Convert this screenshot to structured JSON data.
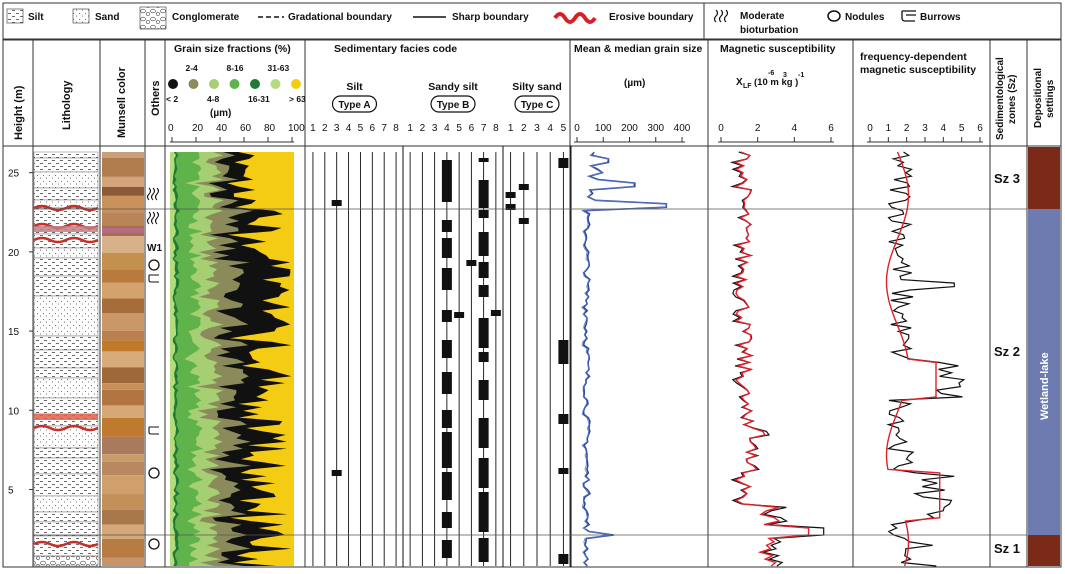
{
  "legend": {
    "silt": "Silt",
    "sand": "Sand",
    "conglomerate": "Conglomerate",
    "gradational": "Gradational boundary",
    "sharp": "Sharp boundary",
    "erosive": "Erosive boundary",
    "bioturbation_1": "Moderate",
    "bioturbation_2": "bioturbation",
    "nodules": "Nodules",
    "burrows": "Burrows"
  },
  "columns": {
    "height": "Height (m)",
    "lithology": "Lithology",
    "munsell": "Munsell color",
    "others": "Others",
    "grain_title": "Grain size fractions (%)",
    "facies_title": "Sedimentary facies code",
    "mean_title": "Mean & median grain size",
    "mean_unit": "(µm)",
    "ms_title": "Magnetic susceptibility",
    "ms_unit": "X",
    "ms_sub": "LF",
    "ms_unit_rest": "(10 m kg )",
    "ms_exp1": "-6",
    "ms_exp2": "3",
    "ms_exp3": "-1",
    "fd_title_1": "frequency-dependent",
    "fd_title_2": "magnetic susceptibility",
    "zones_1": "Sedimentological",
    "zones_2": "zones (Sz)",
    "dep_1": "Depositional",
    "dep_2": "settings"
  },
  "grain_legend": {
    "items": [
      {
        "label": "< 2",
        "top": "",
        "color": "#111111"
      },
      {
        "label": "",
        "top": "2-4",
        "color": "#8a8a5a"
      },
      {
        "label": "4-8",
        "top": "",
        "color": "#a6cf73"
      },
      {
        "label": "",
        "top": "8-16",
        "color": "#5fb34a"
      },
      {
        "label": "16-31",
        "top": "",
        "color": "#1f7a35"
      },
      {
        "label": "",
        "top": "31-63",
        "color": "#b5dc7c"
      },
      {
        "label": "> 63",
        "top": "",
        "color": "#f5cc14"
      }
    ],
    "unit": "(µm)",
    "ticks": [
      "0",
      "20",
      "40",
      "60",
      "80",
      "100"
    ]
  },
  "facies": {
    "types": [
      {
        "name": "Silt",
        "badge": "Type A",
        "ticks": [
          "1",
          "2",
          "3",
          "4",
          "5",
          "6",
          "7",
          "8"
        ]
      },
      {
        "name": "Sandy silt",
        "badge": "Type B",
        "ticks": [
          "1",
          "2",
          "3",
          "4",
          "5",
          "6",
          "7",
          "8"
        ]
      },
      {
        "name": "Silty sand",
        "badge": "Type C",
        "ticks": [
          "1",
          "2",
          "3",
          "4",
          "5"
        ]
      }
    ]
  },
  "height_ticks": [
    "25",
    "20",
    "15",
    "10",
    "5"
  ],
  "mean_ticks": [
    "0",
    "100",
    "200",
    "300",
    "400"
  ],
  "ms_ticks": [
    "0",
    "2",
    "4",
    "6"
  ],
  "fd_ticks": [
    "0",
    "1",
    "2",
    "3",
    "4",
    "5",
    "6"
  ],
  "others_labels": {
    "w1": "W1"
  },
  "zones": [
    {
      "label": "Sz 3",
      "color": "#7a2a16"
    },
    {
      "label": "Sz 2",
      "color": "#6d7bb0"
    },
    {
      "label": "Sz 1",
      "color": "#7a2a16"
    }
  ],
  "depositional_setting": "Wetland-lake",
  "colors": {
    "mean_line": "#2a4b9a",
    "ms_red": "#e0202a",
    "grid": "#333333"
  }
}
